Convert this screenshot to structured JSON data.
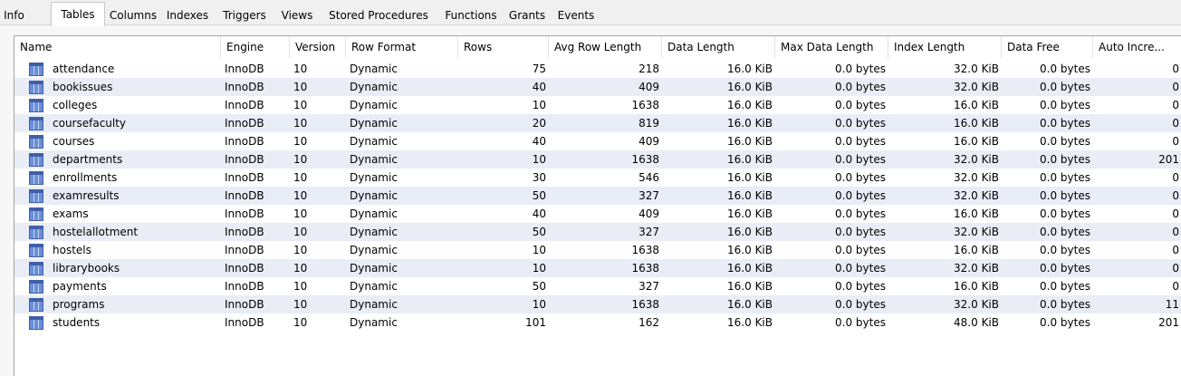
{
  "tabs": [
    {
      "label": "Info",
      "active": false
    },
    {
      "label": "Tables",
      "active": true
    },
    {
      "label": "Columns",
      "active": false
    },
    {
      "label": "Indexes",
      "active": false
    },
    {
      "label": "Triggers",
      "active": false
    },
    {
      "label": "Views",
      "active": false
    },
    {
      "label": "Stored Procedures",
      "active": false
    },
    {
      "label": "Functions",
      "active": false
    },
    {
      "label": "Grants",
      "active": false
    },
    {
      "label": "Events",
      "active": false
    }
  ],
  "columns": [
    "Name",
    "Engine",
    "Version",
    "Row Format",
    "Rows",
    "Avg Row Length",
    "Data Length",
    "Max Data Length",
    "Index Length",
    "Data Free",
    "Auto Incre..."
  ],
  "rows": [
    [
      "attendance",
      "InnoDB",
      "10",
      "Dynamic",
      "75",
      "218",
      "16.0 KiB",
      "0.0 bytes",
      "32.0 KiB",
      "0.0 bytes",
      "0"
    ],
    [
      "bookissues",
      "InnoDB",
      "10",
      "Dynamic",
      "40",
      "409",
      "16.0 KiB",
      "0.0 bytes",
      "32.0 KiB",
      "0.0 bytes",
      "0"
    ],
    [
      "colleges",
      "InnoDB",
      "10",
      "Dynamic",
      "10",
      "1638",
      "16.0 KiB",
      "0.0 bytes",
      "16.0 KiB",
      "0.0 bytes",
      "0"
    ],
    [
      "coursefaculty",
      "InnoDB",
      "10",
      "Dynamic",
      "20",
      "819",
      "16.0 KiB",
      "0.0 bytes",
      "16.0 KiB",
      "0.0 bytes",
      "0"
    ],
    [
      "courses",
      "InnoDB",
      "10",
      "Dynamic",
      "40",
      "409",
      "16.0 KiB",
      "0.0 bytes",
      "16.0 KiB",
      "0.0 bytes",
      "0"
    ],
    [
      "departments",
      "InnoDB",
      "10",
      "Dynamic",
      "10",
      "1638",
      "16.0 KiB",
      "0.0 bytes",
      "32.0 KiB",
      "0.0 bytes",
      "201"
    ],
    [
      "enrollments",
      "InnoDB",
      "10",
      "Dynamic",
      "30",
      "546",
      "16.0 KiB",
      "0.0 bytes",
      "32.0 KiB",
      "0.0 bytes",
      "0"
    ],
    [
      "examresults",
      "InnoDB",
      "10",
      "Dynamic",
      "50",
      "327",
      "16.0 KiB",
      "0.0 bytes",
      "32.0 KiB",
      "0.0 bytes",
      "0"
    ],
    [
      "exams",
      "InnoDB",
      "10",
      "Dynamic",
      "40",
      "409",
      "16.0 KiB",
      "0.0 bytes",
      "16.0 KiB",
      "0.0 bytes",
      "0"
    ],
    [
      "hostelallotment",
      "InnoDB",
      "10",
      "Dynamic",
      "50",
      "327",
      "16.0 KiB",
      "0.0 bytes",
      "32.0 KiB",
      "0.0 bytes",
      "0"
    ],
    [
      "hostels",
      "InnoDB",
      "10",
      "Dynamic",
      "10",
      "1638",
      "16.0 KiB",
      "0.0 bytes",
      "16.0 KiB",
      "0.0 bytes",
      "0"
    ],
    [
      "librarybooks",
      "InnoDB",
      "10",
      "Dynamic",
      "10",
      "1638",
      "16.0 KiB",
      "0.0 bytes",
      "32.0 KiB",
      "0.0 bytes",
      "0"
    ],
    [
      "payments",
      "InnoDB",
      "10",
      "Dynamic",
      "50",
      "327",
      "16.0 KiB",
      "0.0 bytes",
      "16.0 KiB",
      "0.0 bytes",
      "0"
    ],
    [
      "programs",
      "InnoDB",
      "10",
      "Dynamic",
      "10",
      "1638",
      "16.0 KiB",
      "0.0 bytes",
      "32.0 KiB",
      "0.0 bytes",
      "11"
    ],
    [
      "students",
      "InnoDB",
      "10",
      "Dynamic",
      "101",
      "162",
      "16.0 KiB",
      "0.0 bytes",
      "48.0 KiB",
      "0.0 bytes",
      "201"
    ]
  ],
  "icons": {
    "table_icon": "table-icon"
  }
}
